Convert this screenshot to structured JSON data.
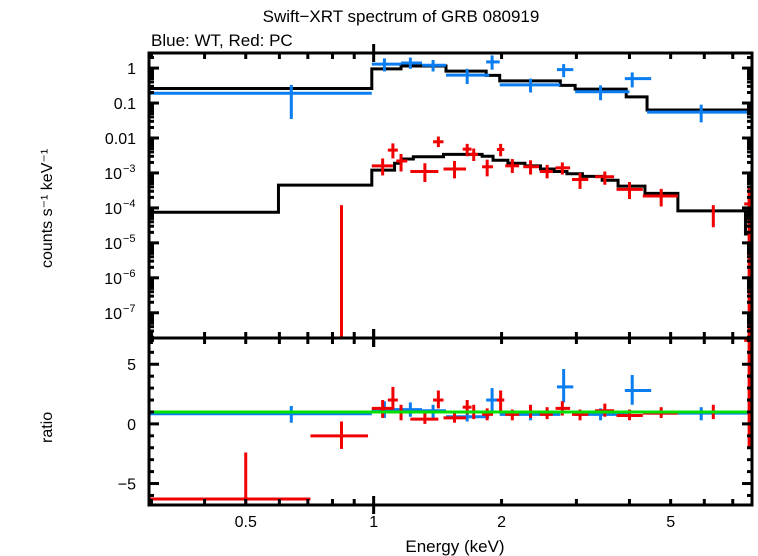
{
  "chart_data": [
    {
      "type": "scatter",
      "panel": "upper",
      "title": "Swift−XRT spectrum of GRB 080919",
      "subtitle": "Blue: WT, Red: PC",
      "xlabel": "Energy (keV)",
      "ylabel": "counts s⁻¹ keV⁻¹",
      "xscale": "log",
      "yscale": "log",
      "xlim": [
        0.296,
        7.77
      ],
      "ylim": [
        1.9e-08,
        2.7
      ],
      "yticks": [
        {
          "value": 1,
          "label": "1",
          "exp": ""
        },
        {
          "value": 0.1,
          "label": "0.1",
          "exp": ""
        },
        {
          "value": 0.01,
          "label": "0.01",
          "exp": ""
        },
        {
          "value": 0.001,
          "label": "10",
          "exp": "−3"
        },
        {
          "value": 0.0001,
          "label": "10",
          "exp": "−4"
        },
        {
          "value": 1e-05,
          "label": "10",
          "exp": "−5"
        },
        {
          "value": 1e-06,
          "label": "10",
          "exp": "−6"
        },
        {
          "value": 1e-07,
          "label": "10",
          "exp": "−7"
        }
      ],
      "series": [
        {
          "name": "WT data",
          "color": "#0a7ef0",
          "points": [
            {
              "x": 0.64,
              "xlo": 0.296,
              "xhi": 0.99,
              "y": 0.19,
              "ylo": 0.035,
              "yhi": 0.33
            },
            {
              "x": 1.06,
              "xlo": 0.99,
              "xhi": 1.16,
              "y": 1.3,
              "ylo": 0.8,
              "yhi": 1.9
            },
            {
              "x": 1.22,
              "xlo": 1.16,
              "xhi": 1.3,
              "y": 1.4,
              "ylo": 0.95,
              "yhi": 2.0
            },
            {
              "x": 1.38,
              "xlo": 1.3,
              "xhi": 1.48,
              "y": 1.2,
              "ylo": 0.8,
              "yhi": 1.7
            },
            {
              "x": 1.66,
              "xlo": 1.48,
              "xhi": 1.87,
              "y": 0.63,
              "ylo": 0.35,
              "yhi": 0.95
            },
            {
              "x": 1.9,
              "xlo": 1.84,
              "xhi": 1.98,
              "y": 1.5,
              "ylo": 0.9,
              "yhi": 2.3
            },
            {
              "x": 2.34,
              "xlo": 1.98,
              "xhi": 2.75,
              "y": 0.33,
              "ylo": 0.2,
              "yhi": 0.5
            },
            {
              "x": 2.8,
              "xlo": 2.7,
              "xhi": 2.95,
              "y": 0.9,
              "ylo": 0.55,
              "yhi": 1.3
            },
            {
              "x": 3.42,
              "xlo": 2.98,
              "xhi": 4.0,
              "y": 0.21,
              "ylo": 0.12,
              "yhi": 0.32
            },
            {
              "x": 4.06,
              "xlo": 3.9,
              "xhi": 4.5,
              "y": 0.5,
              "ylo": 0.28,
              "yhi": 0.75
            },
            {
              "x": 5.9,
              "xlo": 4.4,
              "xhi": 7.7,
              "y": 0.055,
              "ylo": 0.028,
              "yhi": 0.09
            }
          ]
        },
        {
          "name": "WT model",
          "color": "#000000",
          "step": [
            {
              "xlo": 0.296,
              "xhi": 0.99,
              "y": 0.26
            },
            {
              "xlo": 0.99,
              "xhi": 1.16,
              "y": 0.95
            },
            {
              "xlo": 1.16,
              "xhi": 1.48,
              "y": 1.15
            },
            {
              "xlo": 1.48,
              "xhi": 1.84,
              "y": 0.82
            },
            {
              "xlo": 1.84,
              "xhi": 1.98,
              "y": 0.62
            },
            {
              "xlo": 1.98,
              "xhi": 2.75,
              "y": 0.43
            },
            {
              "xlo": 2.75,
              "xhi": 2.98,
              "y": 0.32
            },
            {
              "xlo": 2.98,
              "xhi": 3.93,
              "y": 0.25
            },
            {
              "xlo": 3.93,
              "xhi": 4.4,
              "y": 0.15
            },
            {
              "xlo": 4.4,
              "xhi": 7.7,
              "y": 0.063
            }
          ]
        },
        {
          "name": "PC data",
          "color": "#f00000",
          "points": [
            {
              "x": 0.84,
              "xlo": 0.84,
              "xhi": 0.84,
              "y": 1e-08,
              "ylo": 1e-08,
              "yhi": 0.00012
            },
            {
              "x": 1.05,
              "xlo": 0.99,
              "xhi": 1.11,
              "y": 0.0016,
              "ylo": 0.00085,
              "yhi": 0.0026
            },
            {
              "x": 1.11,
              "xlo": 1.08,
              "xhi": 1.14,
              "y": 0.0045,
              "ylo": 0.0026,
              "yhi": 0.007
            },
            {
              "x": 1.16,
              "xlo": 1.13,
              "xhi": 1.2,
              "y": 0.0022,
              "ylo": 0.0011,
              "yhi": 0.0035
            },
            {
              "x": 1.32,
              "xlo": 1.22,
              "xhi": 1.42,
              "y": 0.0011,
              "ylo": 0.00055,
              "yhi": 0.0019
            },
            {
              "x": 1.42,
              "xlo": 1.38,
              "xhi": 1.46,
              "y": 0.0078,
              "ylo": 0.0055,
              "yhi": 0.011
            },
            {
              "x": 1.55,
              "xlo": 1.46,
              "xhi": 1.65,
              "y": 0.0013,
              "ylo": 0.0007,
              "yhi": 0.0022
            },
            {
              "x": 1.66,
              "xlo": 1.62,
              "xhi": 1.7,
              "y": 0.0048,
              "ylo": 0.003,
              "yhi": 0.0068
            },
            {
              "x": 1.72,
              "xlo": 1.68,
              "xhi": 1.76,
              "y": 0.0034,
              "ylo": 0.0022,
              "yhi": 0.005
            },
            {
              "x": 1.85,
              "xlo": 1.8,
              "xhi": 1.91,
              "y": 0.0015,
              "ylo": 0.0008,
              "yhi": 0.0024
            },
            {
              "x": 1.99,
              "xlo": 1.95,
              "xhi": 2.03,
              "y": 0.0047,
              "ylo": 0.003,
              "yhi": 0.0068
            },
            {
              "x": 2.12,
              "xlo": 2.04,
              "xhi": 2.2,
              "y": 0.0016,
              "ylo": 0.001,
              "yhi": 0.0025
            },
            {
              "x": 2.34,
              "xlo": 2.25,
              "xhi": 2.45,
              "y": 0.0015,
              "ylo": 0.0009,
              "yhi": 0.0023
            },
            {
              "x": 2.56,
              "xlo": 2.46,
              "xhi": 2.64,
              "y": 0.0011,
              "ylo": 0.0007,
              "yhi": 0.0017
            },
            {
              "x": 2.78,
              "xlo": 2.68,
              "xhi": 2.9,
              "y": 0.0014,
              "ylo": 0.0009,
              "yhi": 0.002
            },
            {
              "x": 3.06,
              "xlo": 2.93,
              "xhi": 3.2,
              "y": 0.00065,
              "ylo": 0.00035,
              "yhi": 0.001
            },
            {
              "x": 3.5,
              "xlo": 3.32,
              "xhi": 3.68,
              "y": 0.00078,
              "ylo": 0.00046,
              "yhi": 0.0011
            },
            {
              "x": 4.0,
              "xlo": 3.73,
              "xhi": 4.3,
              "y": 0.00034,
              "ylo": 0.00018,
              "yhi": 0.00055
            },
            {
              "x": 4.75,
              "xlo": 4.3,
              "xhi": 5.2,
              "y": 0.00022,
              "ylo": 0.00011,
              "yhi": 0.00035
            },
            {
              "x": 6.3,
              "xlo": 6.3,
              "xhi": 6.3,
              "y": 6e-05,
              "ylo": 2.8e-05,
              "yhi": 0.00012
            },
            {
              "x": 7.65,
              "xlo": 7.45,
              "xhi": 7.77,
              "y": 0.00013,
              "ylo": 1e-08,
              "yhi": 0.0004
            }
          ]
        },
        {
          "name": "PC model",
          "color": "#000000",
          "step": [
            {
              "xlo": 0.296,
              "xhi": 0.597,
              "y": 7.5e-05
            },
            {
              "xlo": 0.597,
              "xhi": 0.99,
              "y": 0.00045
            },
            {
              "xlo": 0.99,
              "xhi": 1.12,
              "y": 0.0012
            },
            {
              "xlo": 1.12,
              "xhi": 1.16,
              "y": 0.0019
            },
            {
              "xlo": 1.16,
              "xhi": 1.24,
              "y": 0.0025
            },
            {
              "xlo": 1.24,
              "xhi": 1.46,
              "y": 0.0029
            },
            {
              "xlo": 1.46,
              "xhi": 1.8,
              "y": 0.0034
            },
            {
              "xlo": 1.8,
              "xhi": 1.91,
              "y": 0.003
            },
            {
              "xlo": 1.91,
              "xhi": 2.07,
              "y": 0.0023
            },
            {
              "xlo": 2.07,
              "xhi": 2.27,
              "y": 0.0019
            },
            {
              "xlo": 2.27,
              "xhi": 2.47,
              "y": 0.0016
            },
            {
              "xlo": 2.47,
              "xhi": 2.66,
              "y": 0.0013
            },
            {
              "xlo": 2.66,
              "xhi": 2.85,
              "y": 0.0011
            },
            {
              "xlo": 2.85,
              "xhi": 3.1,
              "y": 0.00095
            },
            {
              "xlo": 3.1,
              "xhi": 3.45,
              "y": 0.0008
            },
            {
              "xlo": 3.45,
              "xhi": 3.76,
              "y": 0.00062
            },
            {
              "xlo": 3.76,
              "xhi": 4.35,
              "y": 0.00042
            },
            {
              "xlo": 4.35,
              "xhi": 5.2,
              "y": 0.00026
            },
            {
              "xlo": 5.2,
              "xhi": 7.5,
              "y": 8.2e-05
            },
            {
              "xlo": 7.5,
              "xhi": 7.77,
              "y": 1.8e-05
            }
          ]
        }
      ]
    },
    {
      "type": "scatter",
      "panel": "lower",
      "xlabel": "Energy (keV)",
      "ylabel": "ratio",
      "xscale": "log",
      "xlim": [
        0.296,
        7.77
      ],
      "ylim": [
        -6.8,
        7.2
      ],
      "yticks": [
        {
          "value": 5,
          "label": "5"
        },
        {
          "value": 0,
          "label": "0"
        },
        {
          "value": -5,
          "label": "−5"
        }
      ],
      "xticks": [
        {
          "value": 0.5,
          "label": "0.5"
        },
        {
          "value": 1,
          "label": "1"
        },
        {
          "value": 2,
          "label": "2"
        },
        {
          "value": 5,
          "label": "5"
        }
      ],
      "reference_line": {
        "y": 1,
        "color": "#00e000"
      },
      "series": [
        {
          "name": "WT ratio",
          "color": "#0a7ef0",
          "points": [
            {
              "x": 0.64,
              "xlo": 0.296,
              "xhi": 0.99,
              "y": 0.85,
              "ylo": 0.1,
              "yhi": 1.5
            },
            {
              "x": 1.06,
              "xlo": 0.99,
              "xhi": 1.16,
              "y": 1.2,
              "ylo": 0.5,
              "yhi": 1.9
            },
            {
              "x": 1.22,
              "xlo": 1.16,
              "xhi": 1.3,
              "y": 1.2,
              "ylo": 0.6,
              "yhi": 1.8
            },
            {
              "x": 1.38,
              "xlo": 1.3,
              "xhi": 1.48,
              "y": 1.1,
              "ylo": 0.5,
              "yhi": 1.6
            },
            {
              "x": 1.66,
              "xlo": 1.48,
              "xhi": 1.87,
              "y": 0.6,
              "ylo": 0.2,
              "yhi": 1.0
            },
            {
              "x": 1.9,
              "xlo": 1.84,
              "xhi": 1.98,
              "y": 2.0,
              "ylo": 0.9,
              "yhi": 3.0
            },
            {
              "x": 2.34,
              "xlo": 1.98,
              "xhi": 2.75,
              "y": 0.8,
              "ylo": 0.3,
              "yhi": 1.2
            },
            {
              "x": 2.8,
              "xlo": 2.7,
              "xhi": 2.95,
              "y": 3.1,
              "ylo": 1.8,
              "yhi": 4.6
            },
            {
              "x": 3.42,
              "xlo": 2.98,
              "xhi": 4.0,
              "y": 0.8,
              "ylo": 0.3,
              "yhi": 1.3
            },
            {
              "x": 4.06,
              "xlo": 3.9,
              "xhi": 4.5,
              "y": 2.8,
              "ylo": 1.6,
              "yhi": 4.1
            },
            {
              "x": 5.9,
              "xlo": 4.4,
              "xhi": 7.7,
              "y": 0.9,
              "ylo": 0.3,
              "yhi": 1.4
            }
          ]
        },
        {
          "name": "PC ratio",
          "color": "#f00000",
          "points": [
            {
              "x": 0.5,
              "xlo": 0.296,
              "xhi": 0.71,
              "y": -6.3,
              "ylo": -6.8,
              "yhi": -2.4
            },
            {
              "x": 0.84,
              "xlo": 0.71,
              "xhi": 0.97,
              "y": -1.0,
              "ylo": -2.1,
              "yhi": 0.2
            },
            {
              "x": 1.05,
              "xlo": 0.99,
              "xhi": 1.11,
              "y": 1.3,
              "ylo": 0.5,
              "yhi": 2.0
            },
            {
              "x": 1.11,
              "xlo": 1.08,
              "xhi": 1.14,
              "y": 2.0,
              "ylo": 1.2,
              "yhi": 3.1
            },
            {
              "x": 1.16,
              "xlo": 1.13,
              "xhi": 1.2,
              "y": 1.0,
              "ylo": 0.3,
              "yhi": 1.6
            },
            {
              "x": 1.32,
              "xlo": 1.22,
              "xhi": 1.42,
              "y": 0.4,
              "ylo": 0.0,
              "yhi": 1.0
            },
            {
              "x": 1.42,
              "xlo": 1.38,
              "xhi": 1.46,
              "y": 2.0,
              "ylo": 1.3,
              "yhi": 2.8
            },
            {
              "x": 1.55,
              "xlo": 1.46,
              "xhi": 1.65,
              "y": 0.5,
              "ylo": 0.1,
              "yhi": 1.0
            },
            {
              "x": 1.66,
              "xlo": 1.62,
              "xhi": 1.7,
              "y": 1.4,
              "ylo": 0.8,
              "yhi": 2.0
            },
            {
              "x": 1.72,
              "xlo": 1.68,
              "xhi": 1.76,
              "y": 1.0,
              "ylo": 0.4,
              "yhi": 1.6
            },
            {
              "x": 1.85,
              "xlo": 1.8,
              "xhi": 1.91,
              "y": 0.8,
              "ylo": 0.3,
              "yhi": 1.3
            },
            {
              "x": 1.99,
              "xlo": 1.95,
              "xhi": 2.03,
              "y": 2.0,
              "ylo": 1.1,
              "yhi": 2.8
            },
            {
              "x": 2.12,
              "xlo": 2.04,
              "xhi": 2.2,
              "y": 0.8,
              "ylo": 0.3,
              "yhi": 1.2
            },
            {
              "x": 2.34,
              "xlo": 2.25,
              "xhi": 2.45,
              "y": 1.0,
              "ylo": 0.5,
              "yhi": 1.6
            },
            {
              "x": 2.56,
              "xlo": 2.46,
              "xhi": 2.64,
              "y": 0.8,
              "ylo": 0.4,
              "yhi": 1.4
            },
            {
              "x": 2.78,
              "xlo": 2.68,
              "xhi": 2.9,
              "y": 1.3,
              "ylo": 0.7,
              "yhi": 1.9
            },
            {
              "x": 3.06,
              "xlo": 2.93,
              "xhi": 3.2,
              "y": 0.8,
              "ylo": 0.3,
              "yhi": 1.2
            },
            {
              "x": 3.5,
              "xlo": 3.32,
              "xhi": 3.68,
              "y": 1.1,
              "ylo": 0.6,
              "yhi": 1.7
            },
            {
              "x": 4.0,
              "xlo": 3.73,
              "xhi": 4.3,
              "y": 0.7,
              "ylo": 0.3,
              "yhi": 1.2
            },
            {
              "x": 4.75,
              "xlo": 4.3,
              "xhi": 5.2,
              "y": 0.9,
              "ylo": 0.5,
              "yhi": 1.4
            },
            {
              "x": 6.3,
              "xlo": 5.2,
              "xhi": 7.5,
              "y": 1.0,
              "ylo": 0.4,
              "yhi": 1.6
            },
            {
              "x": 7.65,
              "xlo": 7.45,
              "xhi": 7.77,
              "y": 7.0,
              "ylo": -2.0,
              "yhi": 7.2
            }
          ]
        }
      ]
    }
  ]
}
